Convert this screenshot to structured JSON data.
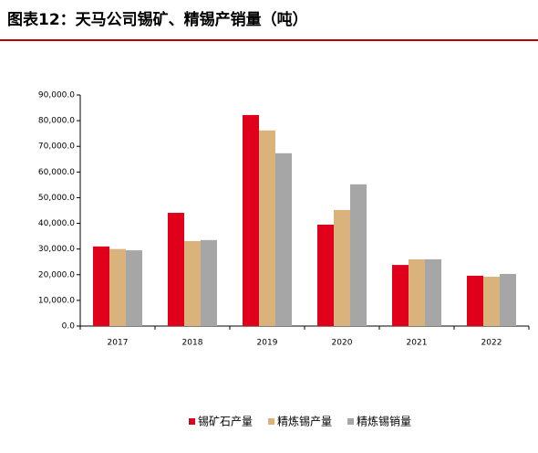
{
  "chart_data": {
    "type": "bar",
    "title": "图表12：天马公司锡矿、精锡产销量（吨）",
    "categories": [
      "2017",
      "2018",
      "2019",
      "2020",
      "2021",
      "2022"
    ],
    "series": [
      {
        "name": "锡矿石产量",
        "color": "#e0001b",
        "values": [
          31000,
          44100,
          82200,
          39500,
          23800,
          19600
        ]
      },
      {
        "name": "精炼锡产量",
        "color": "#d9b27c",
        "values": [
          30000,
          33100,
          76200,
          45200,
          26000,
          19200
        ]
      },
      {
        "name": "精炼锡销量",
        "color": "#a6a6a6",
        "values": [
          29500,
          33500,
          67300,
          55200,
          26000,
          20300
        ]
      }
    ],
    "ylim": [
      0,
      90000
    ],
    "yticks": [
      {
        "value": 0,
        "label": "0.0"
      },
      {
        "value": 10000,
        "label": "10,000.0"
      },
      {
        "value": 20000,
        "label": "20,000.0"
      },
      {
        "value": 30000,
        "label": "30,000.0"
      },
      {
        "value": 40000,
        "label": "40,000.0"
      },
      {
        "value": 50000,
        "label": "50,000.0"
      },
      {
        "value": 60000,
        "label": "60,000.0"
      },
      {
        "value": 70000,
        "label": "70,000.0"
      },
      {
        "value": 80000,
        "label": "80,000.0"
      },
      {
        "value": 90000,
        "label": "90,000.0"
      }
    ],
    "grid": false,
    "legend": "bottom"
  }
}
